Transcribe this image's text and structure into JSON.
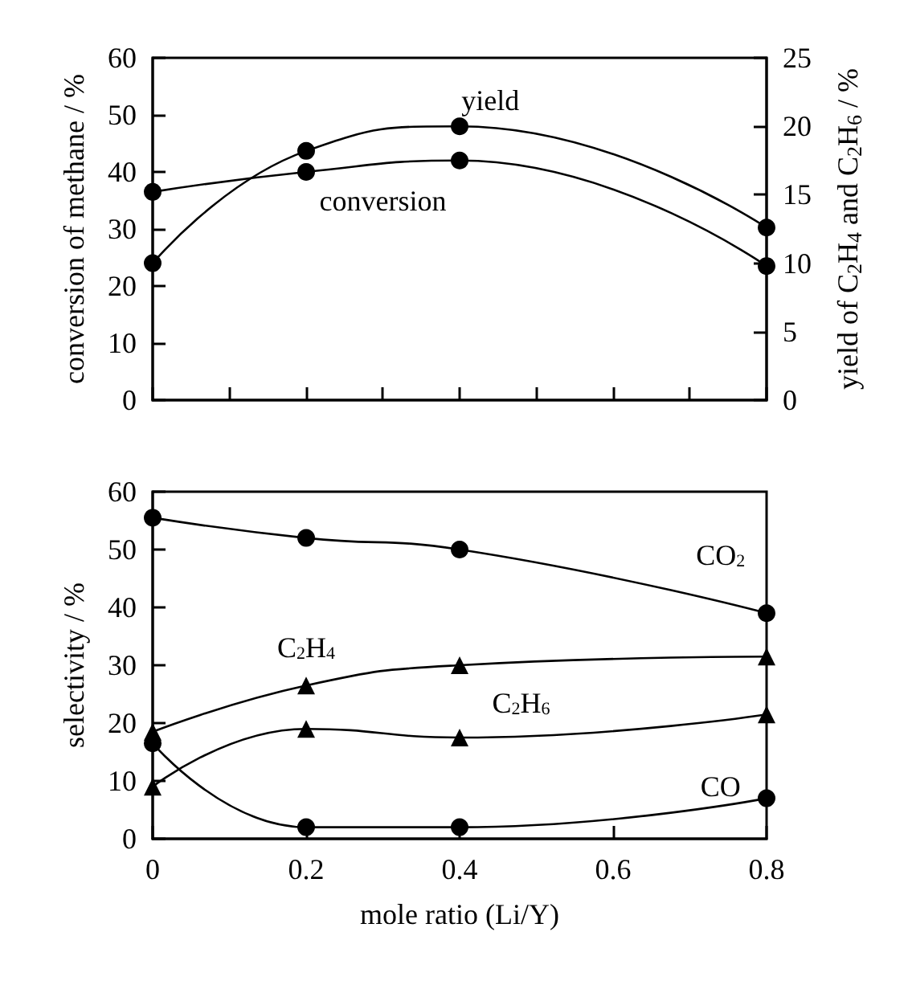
{
  "chart_data": [
    {
      "type": "line",
      "ylabel": "conversion of methane / %",
      "y2label": "yield of C$_{2}$H$_{4}$ and C$_{2}$H$_{6}$ / %",
      "x": [
        0,
        0.2,
        0.4,
        0.8
      ],
      "xlim": [
        0,
        0.8
      ],
      "xticks": [
        {
          "value": 0,
          "label": null
        },
        {
          "value": 0.1,
          "label": null
        },
        {
          "value": 0.2,
          "label": null
        },
        {
          "value": 0.3,
          "label": null
        },
        {
          "value": 0.4,
          "label": null
        },
        {
          "value": 0.5,
          "label": null
        },
        {
          "value": 0.6,
          "label": null
        },
        {
          "value": 0.7,
          "label": null
        },
        {
          "value": 0.8,
          "label": null
        }
      ],
      "ylim": [
        0,
        60
      ],
      "yticks": [
        0,
        10,
        20,
        30,
        40,
        50,
        60
      ],
      "y2lim": [
        0,
        25
      ],
      "y2ticks": [
        0,
        5,
        10,
        15,
        20,
        25
      ],
      "tick_labels": "y",
      "grid": false,
      "series": [
        {
          "color": "#000000",
          "marker": "circle",
          "values": [
            36.5,
            40,
            42,
            23.5
          ]
        },
        {
          "color": "#000000",
          "marker": "circle",
          "axis": "y2",
          "values": [
            10,
            18.2,
            20,
            12.6
          ]
        }
      ],
      "annotations": [
        "yield",
        "conversion"
      ]
    },
    {
      "type": "line",
      "ylabel": "selectivity / %",
      "xlabel": "mole ratio (Li/Y)",
      "x": [
        0,
        0.2,
        0.4,
        0.8
      ],
      "xlim": [
        0,
        0.8
      ],
      "xticks": [
        0,
        0.2,
        0.4,
        0.6,
        0.8
      ],
      "ylim": [
        0,
        60
      ],
      "yticks": [
        0,
        10,
        20,
        30,
        40,
        50,
        60
      ],
      "grid": false,
      "series": [
        {
          "color": "#000000",
          "marker": "circle",
          "values": [
            55.5,
            52,
            50,
            39
          ]
        },
        {
          "color": "#000000",
          "marker": "triangle",
          "values": [
            18.5,
            26.5,
            30,
            31.5
          ]
        },
        {
          "color": "#000000",
          "marker": "triangle",
          "values": [
            9,
            19,
            17.5,
            21.5
          ]
        },
        {
          "color": "#000000",
          "marker": "circle",
          "values": [
            16.5,
            2,
            2,
            7
          ]
        }
      ],
      "annotations": [
        "CO$_{2}$",
        "C$_{2}$H$_{4}$",
        "C$_{2}$H$_{6}$",
        "CO"
      ]
    }
  ]
}
